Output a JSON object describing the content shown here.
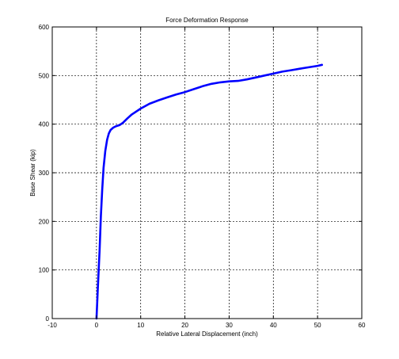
{
  "chart_data": {
    "type": "line",
    "title": "Force Deformation Response",
    "xlabel": "Relative Lateral Displacement (inch)",
    "ylabel": "Base Shear (kip)",
    "xlim": [
      -10,
      60
    ],
    "ylim": [
      0,
      600
    ],
    "xticks": [
      -10,
      0,
      10,
      20,
      30,
      40,
      50,
      60
    ],
    "yticks": [
      0,
      100,
      200,
      300,
      400,
      500,
      600
    ],
    "grid": true,
    "line_color": "#0000ff",
    "series": [
      {
        "x": [
          0,
          0.3,
          0.7,
          1.0,
          1.3,
          1.6,
          2.0,
          2.4,
          2.8,
          3.2,
          3.8,
          4.5,
          5.2,
          6.0,
          7.0,
          8.0,
          10.0,
          12.0,
          14.0,
          16.0,
          18.0,
          20.0,
          22.0,
          24.0,
          26.0,
          28.0,
          30.0,
          32.0,
          34.0,
          36.0,
          38.0,
          40.0,
          42.0,
          44.0,
          46.0,
          48.0,
          50.0,
          51.0
        ],
        "y": [
          0,
          60,
          140,
          210,
          265,
          310,
          345,
          368,
          381,
          388,
          393,
          396,
          398,
          403,
          412,
          420,
          432,
          442,
          449,
          455,
          461,
          466,
          472,
          478,
          483,
          486,
          488,
          489,
          492,
          496,
          500,
          504,
          508,
          511,
          514,
          517,
          520,
          522
        ]
      }
    ]
  }
}
